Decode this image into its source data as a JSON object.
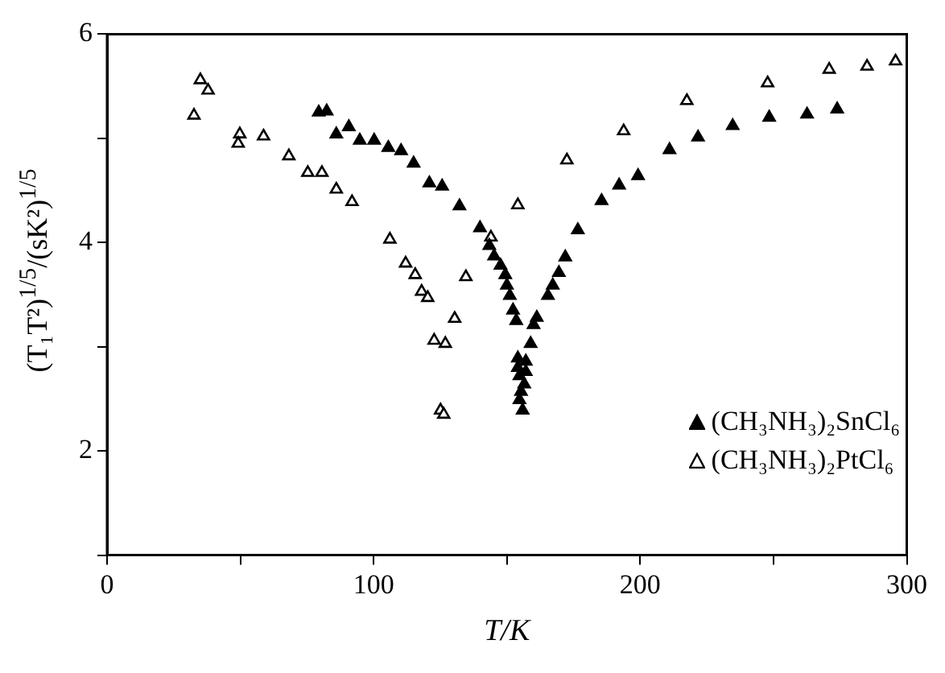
{
  "chart_data": {
    "type": "scatter",
    "xlabel": "T/K",
    "ylabel": "(T₁T²)$^{1/5}$/(sK²)$^{1/5}$",
    "xlim": [
      0,
      300
    ],
    "xticks": [
      0,
      {
        "value": 50,
        "label": null
      },
      100,
      {
        "value": 150,
        "label": null
      },
      200,
      {
        "value": 250,
        "label": null
      },
      300
    ],
    "ylim": [
      1,
      6
    ],
    "yticks": [
      {
        "value": 1,
        "label": null
      },
      2,
      {
        "value": 3,
        "label": null
      },
      4,
      {
        "value": 5,
        "label": null
      },
      6
    ],
    "grid": false,
    "legend": "bottom right",
    "marker": "triangle",
    "series": [
      {
        "name": "(CH₃NH₃)₂SnCl₆",
        "color": "#000000",
        "x": [
          79.4,
          82.4,
          86,
          90.7,
          94.8,
          100.2,
          105.5,
          110.3,
          115,
          120.9,
          125.7,
          132.2,
          139.9,
          143.4,
          145.2,
          147.6,
          149.4,
          150,
          151.1,
          152.3,
          153.5,
          154.1,
          157.1,
          154.1,
          157.1,
          154.7,
          156.5,
          155.3,
          154.7,
          155.9,
          158.9,
          160,
          161.2,
          165.4,
          167.2,
          169.5,
          171.9,
          176.6,
          185.5,
          192.1,
          199.2,
          211,
          221.7,
          234.7,
          248.4,
          262.6,
          273.9
        ],
        "values": [
          5.25,
          5.26,
          5.04,
          5.11,
          4.98,
          4.98,
          4.91,
          4.88,
          4.76,
          4.57,
          4.54,
          4.35,
          4.14,
          3.97,
          3.87,
          3.78,
          3.69,
          3.59,
          3.49,
          3.35,
          3.25,
          2.89,
          2.86,
          2.8,
          2.76,
          2.72,
          2.64,
          2.57,
          2.49,
          2.39,
          3.03,
          3.21,
          3.28,
          3.49,
          3.59,
          3.71,
          3.86,
          4.12,
          4.4,
          4.55,
          4.64,
          4.89,
          5.01,
          5.12,
          5.2,
          5.23,
          5.28
        ]
      },
      {
        "name": "(CH₃NH₃)₂PtCl₆",
        "color": "#000000",
        "x": [
          35,
          37.9,
          32.6,
          49.8,
          49.2,
          58.7,
          68.2,
          75.3,
          80.6,
          86,
          91.9,
          106.1,
          112,
          115.6,
          118,
          120.3,
          130.4,
          122.7,
          126.9,
          125.1,
          126.3,
          134.6,
          144,
          154.1,
          172.5,
          193.8,
          217.5,
          247.8,
          270.9,
          285.1,
          295.8
        ],
        "values": [
          5.56,
          5.46,
          5.22,
          5.04,
          4.95,
          5.02,
          4.83,
          4.67,
          4.67,
          4.51,
          4.39,
          4.03,
          3.8,
          3.69,
          3.53,
          3.47,
          3.27,
          3.06,
          3.03,
          2.39,
          2.35,
          3.67,
          4.05,
          4.36,
          4.79,
          5.07,
          5.36,
          5.53,
          5.66,
          5.69,
          5.74
        ]
      }
    ]
  }
}
